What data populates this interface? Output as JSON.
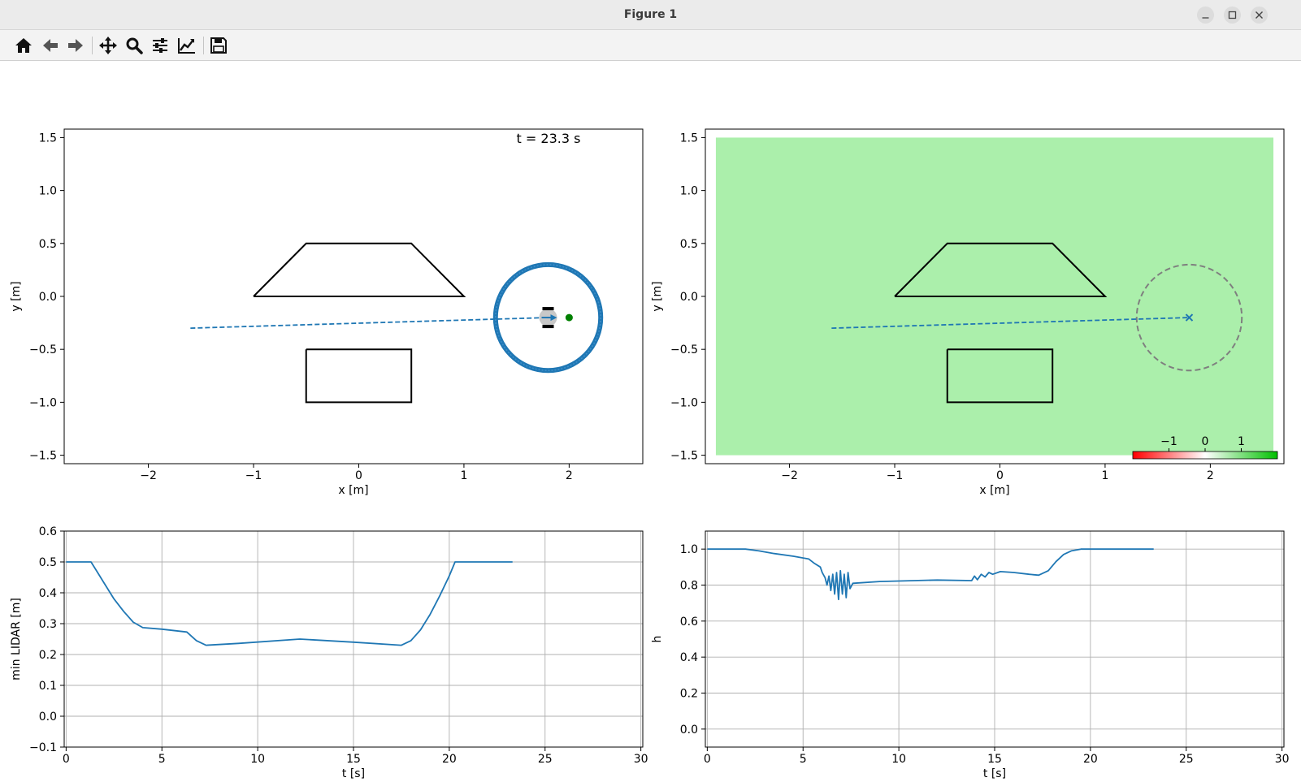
{
  "window": {
    "title": "Figure 1"
  },
  "toolbar": {
    "buttons": [
      {
        "icon": "home-icon"
      },
      {
        "icon": "back-arrow-icon"
      },
      {
        "icon": "forward-arrow-icon"
      },
      {
        "icon": "pan-move-icon"
      },
      {
        "icon": "zoom-magnifier-icon"
      },
      {
        "icon": "subplots-sliders-icon"
      },
      {
        "icon": "edit-axis-icon"
      },
      {
        "icon": "save-floppy-icon"
      }
    ]
  },
  "colors": {
    "trajectory": "#1f77b4",
    "safe_region": "#abefab",
    "goal": "#008000",
    "obstacle": "#000000",
    "grid": "#b0b0b0",
    "robot_body": "#c8c8c8",
    "dashed_circle": "#7f7f7f"
  },
  "chart_data": [
    {
      "id": "scene",
      "type": "line",
      "annotation": "t = 23.3 s",
      "xlabel": "x [m]",
      "ylabel": "y [m]",
      "xlim": [
        -2.8,
        2.7
      ],
      "ylim": [
        -1.58,
        1.58
      ],
      "xticks": [
        -2,
        -1,
        0,
        1,
        2
      ],
      "yticks": [
        -1.5,
        -1.0,
        -0.5,
        0.0,
        0.5,
        1.0,
        1.5
      ],
      "xtick_labels": [
        "−2",
        "−1",
        "0",
        "1",
        "2"
      ],
      "ytick_labels": [
        "−1.5",
        "−1.0",
        "−0.5",
        "0.0",
        "0.5",
        "1.0",
        "1.5"
      ],
      "grid": false,
      "obstacles": [
        {
          "x": [
            -1.0,
            -0.5,
            0.5,
            1.0,
            -1.0
          ],
          "y": [
            0.0,
            0.5,
            0.5,
            0.0,
            0.0
          ]
        },
        {
          "x": [
            -0.5,
            0.5,
            0.5,
            -0.5,
            -0.5
          ],
          "y": [
            -0.5,
            -0.5,
            -1.0,
            -1.0,
            -0.5
          ]
        }
      ],
      "trajectory": {
        "x": [
          -1.6,
          1.8
        ],
        "y": [
          -0.3,
          -0.2
        ]
      },
      "robot": {
        "x": 1.8,
        "y": -0.2
      },
      "goal": {
        "x": 2.0,
        "y": -0.2
      },
      "lidar_ring": {
        "x": 1.8,
        "y": -0.2,
        "radius": 0.5
      }
    },
    {
      "id": "safety_map",
      "type": "heatmap",
      "xlabel": "x [m]",
      "ylabel": "y [m]",
      "xlim": [
        -2.8,
        2.7
      ],
      "ylim": [
        -1.58,
        1.58
      ],
      "xticks": [
        -2,
        -1,
        0,
        1,
        2
      ],
      "yticks": [
        -1.5,
        -1.0,
        -0.5,
        0.0,
        0.5,
        1.0,
        1.5
      ],
      "xtick_labels": [
        "−2",
        "−1",
        "0",
        "1",
        "2"
      ],
      "ytick_labels": [
        "−1.5",
        "−1.0",
        "−0.5",
        "0.0",
        "0.5",
        "1.0",
        "1.5"
      ],
      "grid": false,
      "field_extent": {
        "x": [
          -2.7,
          2.6
        ],
        "y": [
          -1.5,
          1.5
        ]
      },
      "field_value": 0.6,
      "obstacles": [
        {
          "x": [
            -1.0,
            -0.5,
            0.5,
            1.0,
            -1.0
          ],
          "y": [
            0.0,
            0.5,
            0.5,
            0.0,
            0.0
          ]
        },
        {
          "x": [
            -0.5,
            0.5,
            0.5,
            -0.5,
            -0.5
          ],
          "y": [
            -0.5,
            -0.5,
            -1.0,
            -1.0,
            -0.5
          ]
        }
      ],
      "trajectory": {
        "x": [
          -1.6,
          1.8
        ],
        "y": [
          -0.3,
          -0.2
        ]
      },
      "robot": {
        "x": 1.8,
        "y": -0.2
      },
      "sensing_circle": {
        "x": 1.8,
        "y": -0.2,
        "radius": 0.5
      },
      "colorbar": {
        "range": [
          -2,
          2
        ],
        "ticks": [
          -1,
          0,
          1
        ],
        "tick_labels": [
          "−1",
          "0",
          "1"
        ],
        "colors": [
          "#ff0000",
          "#ffffff",
          "#00c000"
        ],
        "placement": "bottom-right"
      }
    },
    {
      "id": "min_lidar",
      "type": "line",
      "xlabel": "t [s]",
      "ylabel": "min LIDAR [m]",
      "xlim": [
        -0.1,
        30.1
      ],
      "ylim": [
        -0.1,
        0.6
      ],
      "xticks": [
        0,
        5,
        10,
        15,
        20,
        25,
        30
      ],
      "yticks": [
        -0.1,
        0.0,
        0.1,
        0.2,
        0.3,
        0.4,
        0.5,
        0.6
      ],
      "xtick_labels": [
        "0",
        "5",
        "10",
        "15",
        "20",
        "25",
        "30"
      ],
      "ytick_labels": [
        "−0.1",
        "0.0",
        "0.1",
        "0.2",
        "0.3",
        "0.4",
        "0.5",
        "0.6"
      ],
      "grid": true,
      "series": [
        {
          "x": [
            0,
            1.3,
            1.6,
            2.0,
            2.5,
            3.0,
            3.5,
            4.0,
            5.0,
            6.3,
            6.8,
            7.3,
            9.0,
            12.2,
            15.0,
            17.5,
            18.0,
            18.5,
            19.0,
            19.5,
            20.0,
            20.3,
            21.0,
            23.3
          ],
          "y": [
            0.5,
            0.5,
            0.47,
            0.43,
            0.38,
            0.34,
            0.305,
            0.287,
            0.282,
            0.273,
            0.245,
            0.23,
            0.236,
            0.25,
            0.24,
            0.23,
            0.245,
            0.28,
            0.33,
            0.39,
            0.455,
            0.5,
            0.5,
            0.5
          ]
        }
      ]
    },
    {
      "id": "h_value",
      "type": "line",
      "xlabel": "t [s]",
      "ylabel": "h",
      "xlim": [
        -0.1,
        30.1
      ],
      "ylim": [
        -0.1,
        1.1
      ],
      "xticks": [
        0,
        5,
        10,
        15,
        20,
        25,
        30
      ],
      "yticks": [
        0.0,
        0.2,
        0.4,
        0.6,
        0.8,
        1.0
      ],
      "xtick_labels": [
        "0",
        "5",
        "10",
        "15",
        "20",
        "25",
        "30"
      ],
      "ytick_labels": [
        "0.0",
        "0.2",
        "0.4",
        "0.6",
        "0.8",
        "1.0"
      ],
      "grid": true,
      "series": [
        {
          "x": [
            0,
            2.0,
            2.7,
            3.5,
            4.5,
            5.3,
            5.6,
            5.9,
            6.0,
            6.15,
            6.25,
            6.35,
            6.45,
            6.55,
            6.65,
            6.75,
            6.85,
            6.95,
            7.05,
            7.15,
            7.25,
            7.35,
            7.45,
            7.6,
            9.0,
            12.0,
            13.8,
            13.95,
            14.1,
            14.3,
            14.5,
            14.7,
            14.9,
            15.3,
            16.0,
            16.8,
            17.3,
            17.8,
            18.2,
            18.6,
            19.0,
            19.5,
            23.3
          ],
          "y": [
            1.0,
            1.0,
            0.99,
            0.975,
            0.96,
            0.945,
            0.92,
            0.9,
            0.87,
            0.84,
            0.8,
            0.85,
            0.77,
            0.86,
            0.75,
            0.87,
            0.72,
            0.88,
            0.75,
            0.86,
            0.73,
            0.87,
            0.78,
            0.81,
            0.82,
            0.828,
            0.825,
            0.85,
            0.83,
            0.86,
            0.845,
            0.87,
            0.86,
            0.875,
            0.87,
            0.86,
            0.855,
            0.88,
            0.93,
            0.97,
            0.99,
            1.0,
            1.0
          ]
        }
      ]
    }
  ]
}
